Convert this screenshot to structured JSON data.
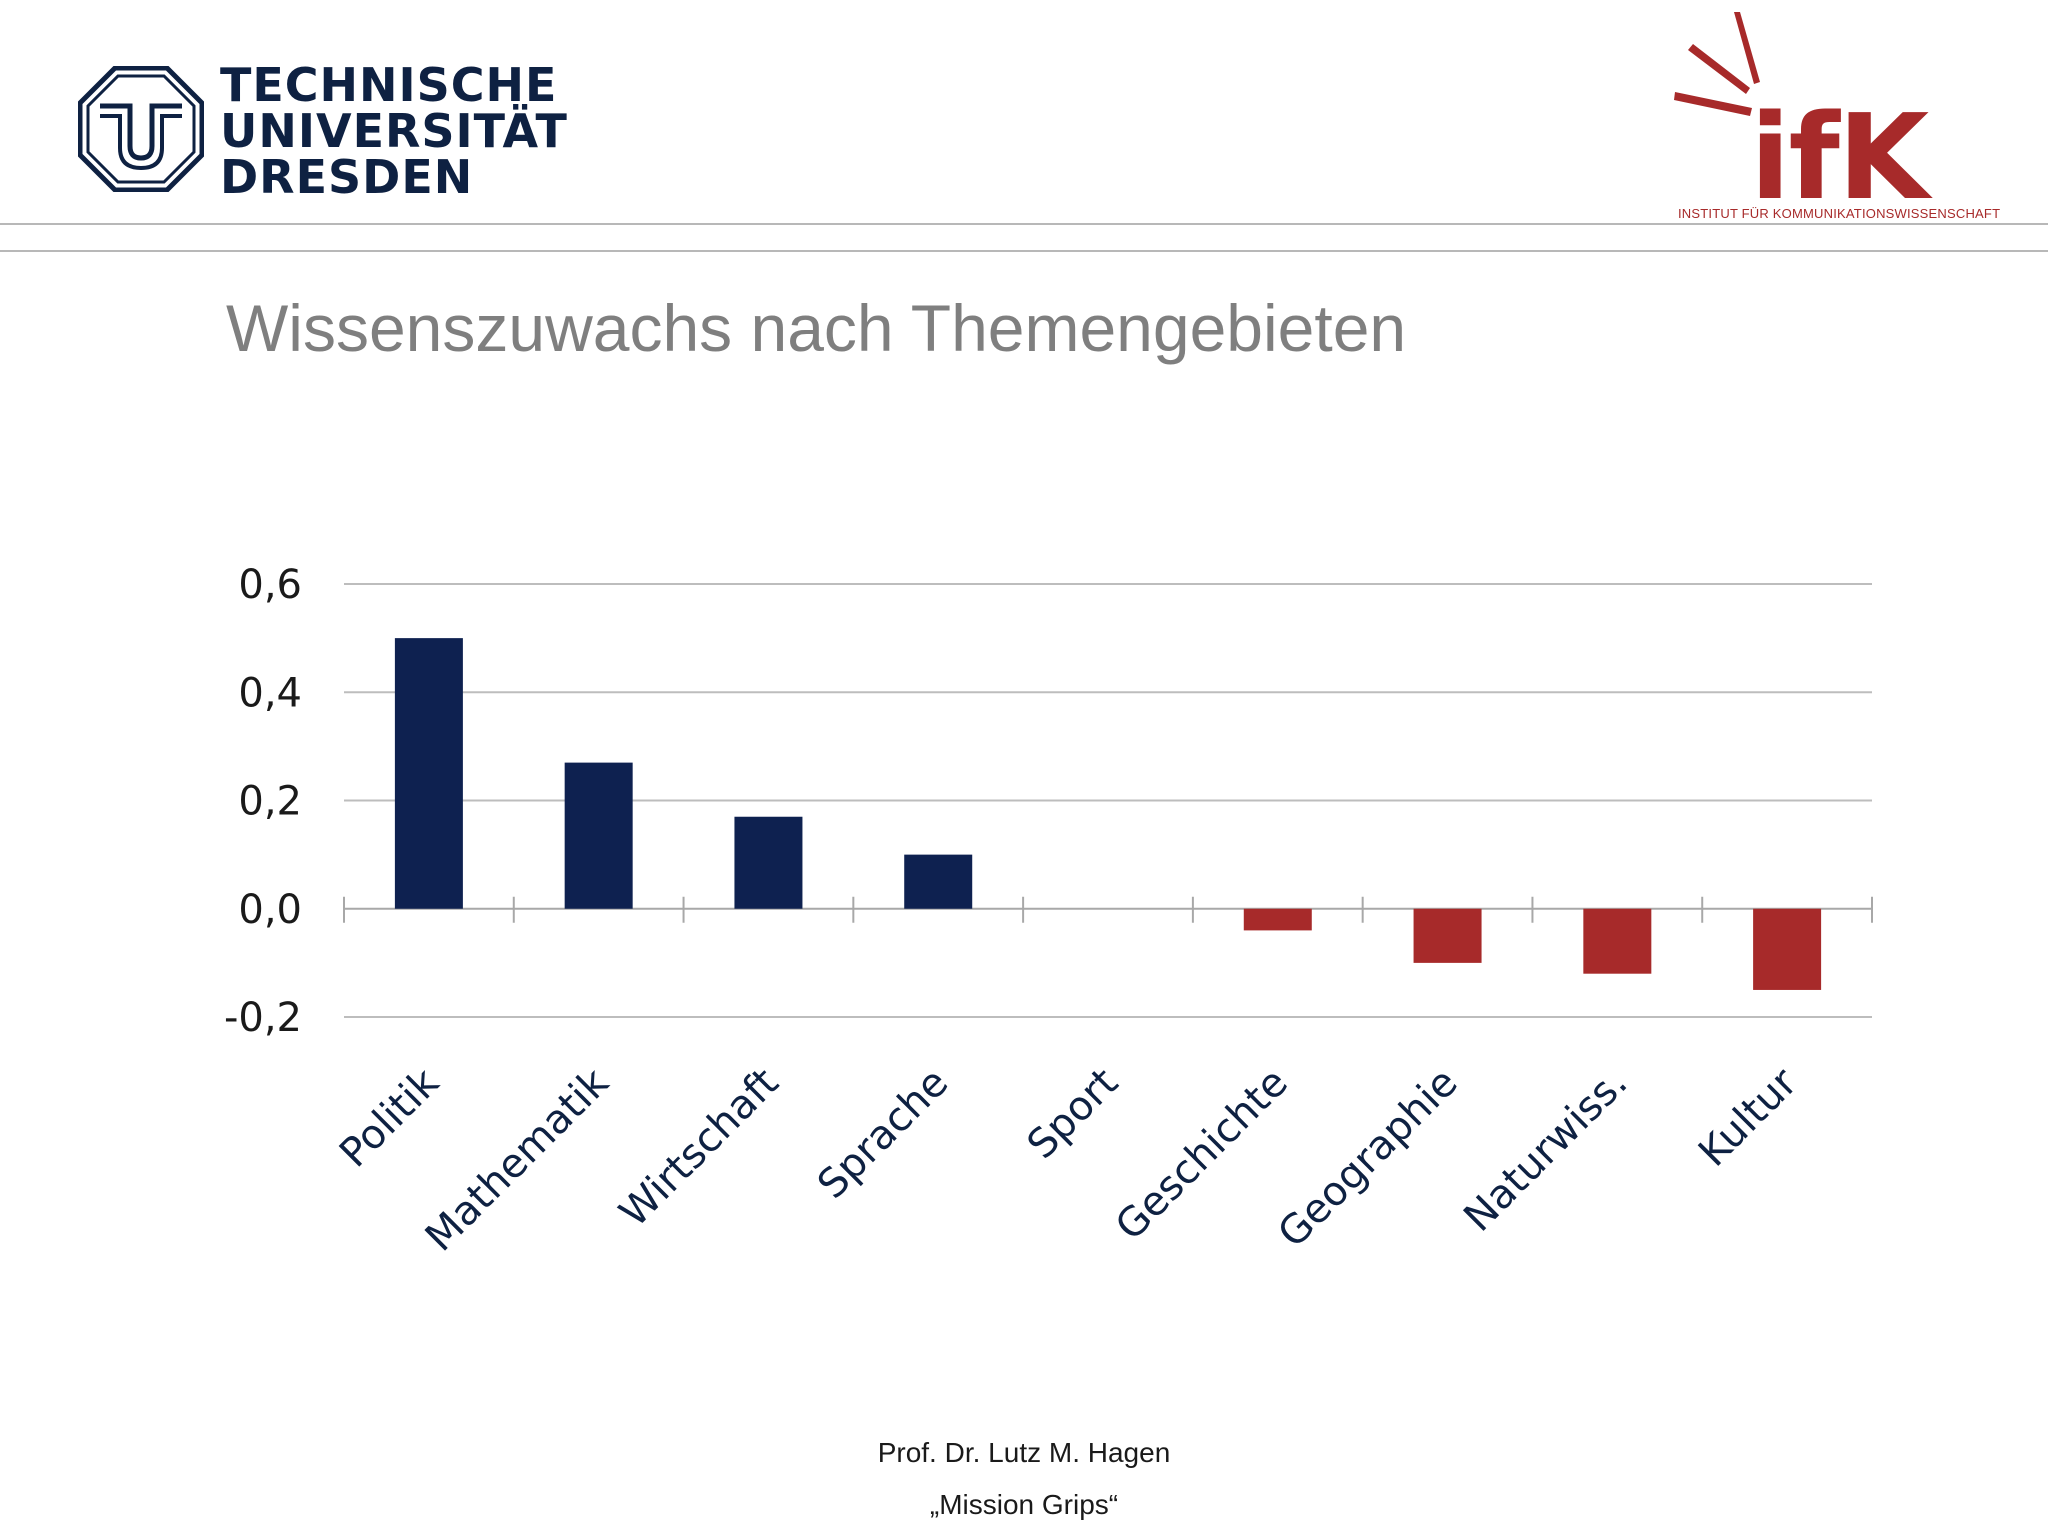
{
  "header": {
    "left_logo": {
      "lines": [
        "TECHNISCHE",
        "UNIVERSITÄT",
        "DRESDEN"
      ],
      "color": "#0e2142"
    },
    "right_logo": {
      "letters": "ifK",
      "subtitle": "INSTITUT FÜR KOMMUNIKATIONSWISSENSCHAFT",
      "color": "#a72a2a"
    }
  },
  "slide": {
    "title": "Wissenszuwachs nach Themengebieten"
  },
  "chart_data": {
    "type": "bar",
    "title": "",
    "xlabel": "",
    "ylabel": "",
    "categories": [
      "Politik",
      "Mathematik",
      "Wirtschaft",
      "Sprache",
      "Sport",
      "Geschichte",
      "Geographie",
      "Naturwiss.",
      "Kultur"
    ],
    "values": [
      0.5,
      0.27,
      0.17,
      0.1,
      0.0,
      -0.04,
      -0.1,
      -0.12,
      -0.15
    ],
    "ylim": [
      -0.2,
      0.6
    ],
    "yticks": [
      0.6,
      0.4,
      0.2,
      0.0,
      -0.2
    ],
    "ytick_labels": [
      "0,6",
      "0,4",
      "0,2",
      "0,0",
      "-0,2"
    ],
    "positive_color": "#0e2150",
    "negative_color": "#a72a2a",
    "grid": true,
    "legend": "none"
  },
  "footer": {
    "author": "Prof. Dr. Lutz M. Hagen",
    "project": "„Mission Grips“"
  }
}
